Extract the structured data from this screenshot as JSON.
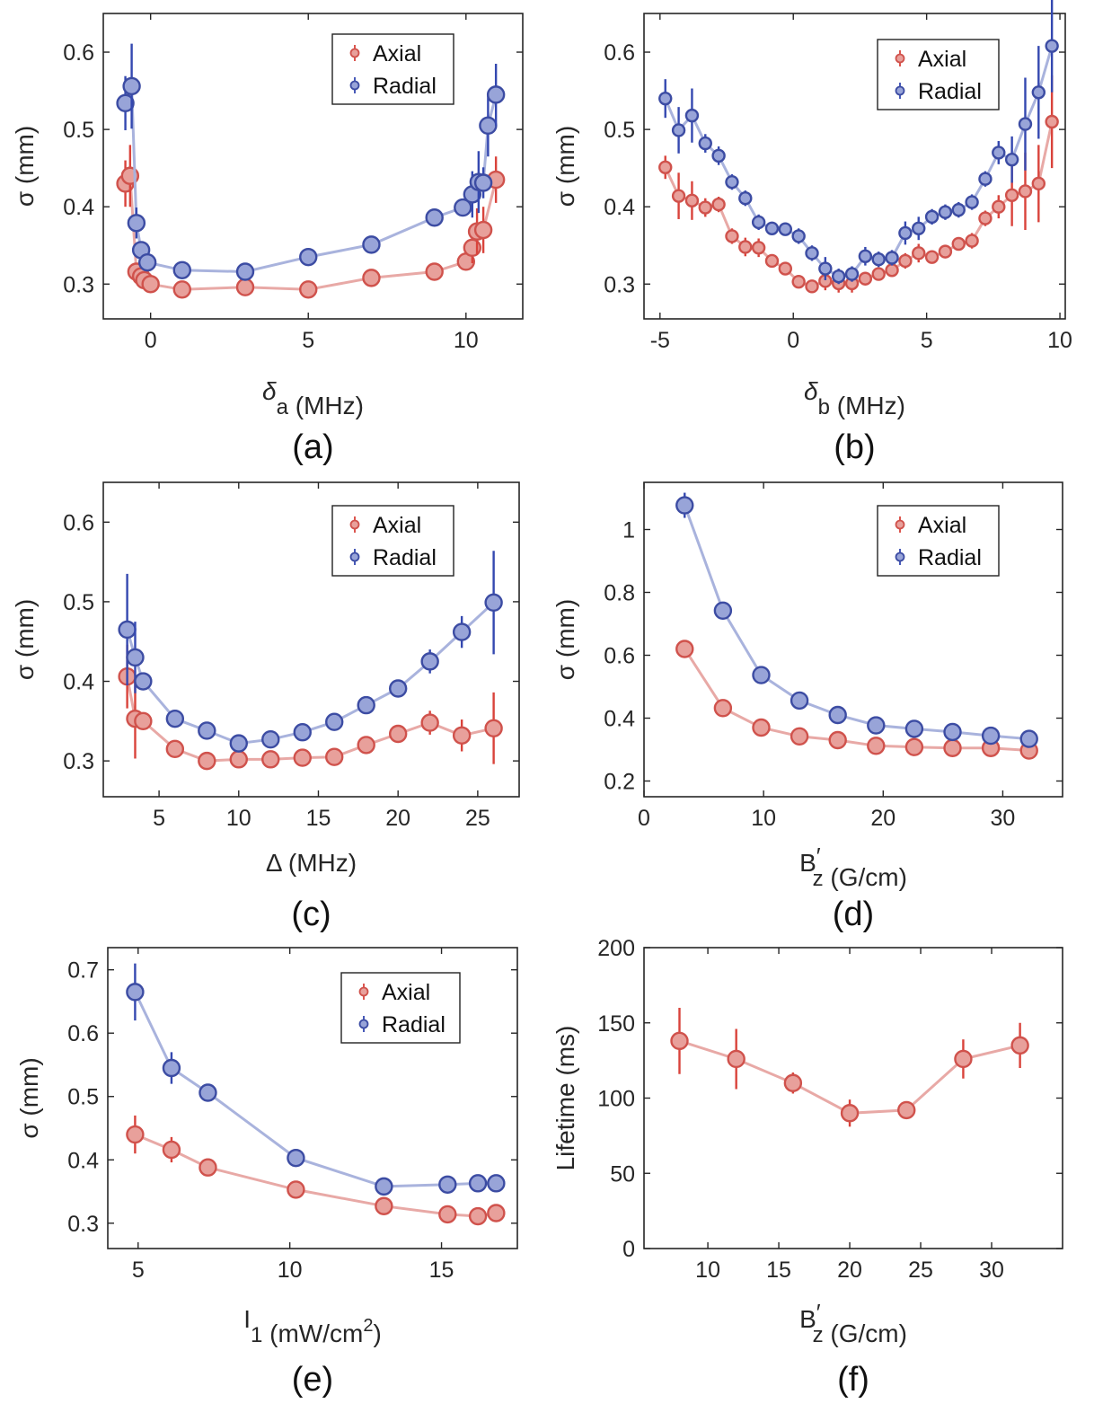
{
  "chart_data": [
    {
      "id": "a",
      "type": "line",
      "panel_label": "(a)",
      "xlabel_base": "δ",
      "xlabel_sub": "a",
      "xlabel_rest": " (MHz)",
      "ylabel": "σ (mm)",
      "xlim": [
        -1.5,
        11.8
      ],
      "ylim": [
        0.255,
        0.65
      ],
      "xticks": [
        0,
        5,
        10
      ],
      "xtick_labels": [
        "0",
        "5",
        "10"
      ],
      "yticks": [
        0.3,
        0.4,
        0.5,
        0.6
      ],
      "ytick_labels": [
        "0.3",
        "0.4",
        "0.5",
        "0.6"
      ],
      "legend": "top-right",
      "series": [
        {
          "name": "Axial",
          "x": [
            -0.8,
            -0.65,
            -0.45,
            -0.3,
            -0.2,
            0.0,
            1.0,
            3.0,
            5.0,
            7.0,
            9.0,
            10.0,
            10.2,
            10.35,
            10.55,
            10.95
          ],
          "y": [
            0.43,
            0.44,
            0.316,
            0.31,
            0.305,
            0.3,
            0.293,
            0.296,
            0.293,
            0.308,
            0.316,
            0.329,
            0.347,
            0.368,
            0.37,
            0.435
          ],
          "err": [
            0.03,
            0.04,
            0.01,
            0.01,
            0.01,
            0.01,
            0.005,
            0.005,
            0.005,
            0.005,
            0.005,
            0.01,
            0.02,
            0.03,
            0.03,
            0.03
          ]
        },
        {
          "name": "Radial",
          "x": [
            -0.8,
            -0.6,
            -0.45,
            -0.3,
            -0.1,
            1.0,
            3.0,
            5.0,
            7.0,
            9.0,
            9.9,
            10.2,
            10.4,
            10.55,
            10.7,
            10.95
          ],
          "y": [
            0.534,
            0.556,
            0.379,
            0.344,
            0.328,
            0.318,
            0.316,
            0.335,
            0.351,
            0.386,
            0.399,
            0.416,
            0.432,
            0.431,
            0.505,
            0.545
          ],
          "err": [
            0.035,
            0.055,
            0.02,
            0.01,
            0.008,
            0.005,
            0.005,
            0.005,
            0.005,
            0.005,
            0.01,
            0.03,
            0.04,
            0.02,
            0.04,
            0.04
          ]
        }
      ]
    },
    {
      "id": "b",
      "type": "line",
      "panel_label": "(b)",
      "xlabel_base": "δ",
      "xlabel_sub": "b",
      "xlabel_rest": " (MHz)",
      "ylabel": "σ (mm)",
      "xlim": [
        -5.6,
        10.2
      ],
      "ylim": [
        0.255,
        0.65
      ],
      "xticks": [
        -5,
        0,
        5,
        10
      ],
      "xtick_labels": [
        "-5",
        "0",
        "5",
        "10"
      ],
      "yticks": [
        0.3,
        0.4,
        0.5,
        0.6
      ],
      "ytick_labels": [
        "0.3",
        "0.4",
        "0.5",
        "0.6"
      ],
      "legend": "top-right",
      "series": [
        {
          "name": "Axial",
          "x": [
            -4.8,
            -4.3,
            -3.8,
            -3.3,
            -2.8,
            -2.3,
            -1.8,
            -1.3,
            -0.8,
            -0.3,
            0.2,
            0.7,
            1.2,
            1.7,
            2.2,
            2.7,
            3.2,
            3.7,
            4.2,
            4.7,
            5.2,
            5.7,
            6.2,
            6.7,
            7.2,
            7.7,
            8.2,
            8.7,
            9.2,
            9.7
          ],
          "y": [
            0.451,
            0.414,
            0.408,
            0.399,
            0.403,
            0.362,
            0.348,
            0.347,
            0.33,
            0.32,
            0.303,
            0.297,
            0.304,
            0.301,
            0.301,
            0.307,
            0.313,
            0.318,
            0.33,
            0.34,
            0.335,
            0.342,
            0.352,
            0.356,
            0.385,
            0.4,
            0.415,
            0.42,
            0.43,
            0.51
          ],
          "err": [
            0.015,
            0.03,
            0.025,
            0.012,
            0.01,
            0.01,
            0.012,
            0.012,
            0.008,
            0.007,
            0.005,
            0.005,
            0.012,
            0.012,
            0.012,
            0.008,
            0.008,
            0.008,
            0.01,
            0.012,
            0.008,
            0.008,
            0.008,
            0.01,
            0.01,
            0.015,
            0.04,
            0.05,
            0.05,
            0.06
          ]
        },
        {
          "name": "Radial",
          "x": [
            -4.8,
            -4.3,
            -3.8,
            -3.3,
            -2.8,
            -2.3,
            -1.8,
            -1.3,
            -0.8,
            -0.3,
            0.2,
            0.7,
            1.2,
            1.7,
            2.2,
            2.7,
            3.2,
            3.7,
            4.2,
            4.7,
            5.2,
            5.7,
            6.2,
            6.7,
            7.2,
            7.7,
            8.2,
            8.7,
            9.2,
            9.7
          ],
          "y": [
            0.54,
            0.499,
            0.518,
            0.482,
            0.466,
            0.432,
            0.411,
            0.38,
            0.372,
            0.371,
            0.362,
            0.34,
            0.32,
            0.31,
            0.313,
            0.336,
            0.332,
            0.334,
            0.366,
            0.372,
            0.387,
            0.393,
            0.396,
            0.406,
            0.436,
            0.47,
            0.461,
            0.507,
            0.548,
            0.608
          ],
          "err": [
            0.025,
            0.03,
            0.035,
            0.012,
            0.012,
            0.01,
            0.01,
            0.01,
            0.008,
            0.008,
            0.01,
            0.01,
            0.015,
            0.01,
            0.01,
            0.012,
            0.01,
            0.01,
            0.015,
            0.015,
            0.01,
            0.01,
            0.01,
            0.01,
            0.01,
            0.015,
            0.03,
            0.06,
            0.06,
            0.06
          ]
        }
      ]
    },
    {
      "id": "c",
      "type": "line",
      "panel_label": "(c)",
      "xlabel_base": "Δ",
      "xlabel_sub": "",
      "xlabel_rest": " (MHz)",
      "ylabel": "σ (mm)",
      "xlim": [
        1.5,
        27.6
      ],
      "ylim": [
        0.255,
        0.65
      ],
      "xticks": [
        5,
        10,
        15,
        20,
        25
      ],
      "xtick_labels": [
        "5",
        "10",
        "15",
        "20",
        "25"
      ],
      "yticks": [
        0.3,
        0.4,
        0.5,
        0.6
      ],
      "ytick_labels": [
        "0.3",
        "0.4",
        "0.5",
        "0.6"
      ],
      "legend": "top-right",
      "series": [
        {
          "name": "Axial",
          "x": [
            3.0,
            3.5,
            4.0,
            6.0,
            8.0,
            10.0,
            12.0,
            14.0,
            16.0,
            18.0,
            20.0,
            22.0,
            24.0,
            26.0
          ],
          "y": [
            0.406,
            0.353,
            0.35,
            0.315,
            0.3,
            0.302,
            0.302,
            0.304,
            0.305,
            0.32,
            0.334,
            0.348,
            0.332,
            0.341
          ],
          "err": [
            0.04,
            0.05,
            0.01,
            0.005,
            0.005,
            0.005,
            0.005,
            0.005,
            0.005,
            0.005,
            0.01,
            0.015,
            0.02,
            0.045
          ]
        },
        {
          "name": "Radial",
          "x": [
            3.0,
            3.5,
            4.0,
            6.0,
            8.0,
            10.0,
            12.0,
            14.0,
            16.0,
            18.0,
            20.0,
            22.0,
            24.0,
            26.0
          ],
          "y": [
            0.465,
            0.43,
            0.4,
            0.353,
            0.338,
            0.322,
            0.327,
            0.336,
            0.349,
            0.37,
            0.391,
            0.425,
            0.462,
            0.499
          ],
          "err": [
            0.07,
            0.045,
            0.01,
            0.005,
            0.005,
            0.005,
            0.005,
            0.005,
            0.005,
            0.005,
            0.008,
            0.015,
            0.02,
            0.065
          ]
        }
      ]
    },
    {
      "id": "d",
      "type": "line",
      "panel_label": "(d)",
      "xlabel_base": "B",
      "xlabel_sub": "z",
      "xlabel_rest": " (G/cm)",
      "xlabel_prime": true,
      "ylabel": "σ (mm)",
      "xlim": [
        0,
        35
      ],
      "ylim": [
        0.15,
        1.15
      ],
      "xticks": [
        0,
        10,
        20,
        30
      ],
      "xtick_labels": [
        "0",
        "10",
        "20",
        "30"
      ],
      "yticks": [
        0.2,
        0.4,
        0.6,
        0.8,
        1.0
      ],
      "ytick_labels": [
        "0.2",
        "0.4",
        "0.6",
        "0.8",
        "1"
      ],
      "legend": "top-right",
      "series": [
        {
          "name": "Axial",
          "x": [
            3.4,
            6.6,
            9.8,
            13.0,
            16.2,
            19.4,
            22.6,
            25.8,
            29.0,
            32.2
          ],
          "y": [
            0.62,
            0.432,
            0.37,
            0.342,
            0.33,
            0.312,
            0.308,
            0.305,
            0.305,
            0.297
          ],
          "err": [
            0.01,
            0.01,
            0.01,
            0.008,
            0.005,
            0.005,
            0.005,
            0.005,
            0.005,
            0.005
          ]
        },
        {
          "name": "Radial",
          "x": [
            3.4,
            6.6,
            9.8,
            13.0,
            16.2,
            19.4,
            22.6,
            25.8,
            29.0,
            32.2
          ],
          "y": [
            1.077,
            0.742,
            0.537,
            0.456,
            0.41,
            0.377,
            0.366,
            0.356,
            0.344,
            0.334
          ],
          "err": [
            0.04,
            0.01,
            0.01,
            0.008,
            0.005,
            0.005,
            0.005,
            0.005,
            0.005,
            0.005
          ]
        }
      ]
    },
    {
      "id": "e",
      "type": "line",
      "panel_label": "(e)",
      "xlabel_base": "I",
      "xlabel_sub": "1",
      "xlabel_rest": " (mW/cm",
      "xlabel_sup": "2",
      "xlabel_end": ")",
      "ylabel": "σ (mm)",
      "xlim": [
        4.0,
        17.5
      ],
      "ylim": [
        0.26,
        0.735
      ],
      "xticks": [
        5,
        10,
        15
      ],
      "xtick_labels": [
        "5",
        "10",
        "15"
      ],
      "yticks": [
        0.3,
        0.4,
        0.5,
        0.6,
        0.7
      ],
      "ytick_labels": [
        "0.3",
        "0.4",
        "0.5",
        "0.6",
        "0.7"
      ],
      "legend": "top-right",
      "series": [
        {
          "name": "Axial",
          "x": [
            4.9,
            6.1,
            7.3,
            10.2,
            13.1,
            15.2,
            16.2,
            16.8
          ],
          "y": [
            0.44,
            0.416,
            0.388,
            0.353,
            0.327,
            0.314,
            0.311,
            0.316
          ],
          "err": [
            0.03,
            0.02,
            0.008,
            0.008,
            0.008,
            0.008,
            0.008,
            0.008
          ]
        },
        {
          "name": "Radial",
          "x": [
            4.9,
            6.1,
            7.3,
            10.2,
            13.1,
            15.2,
            16.2,
            16.8
          ],
          "y": [
            0.665,
            0.545,
            0.506,
            0.403,
            0.358,
            0.361,
            0.363,
            0.363
          ],
          "err": [
            0.045,
            0.025,
            0.008,
            0.008,
            0.008,
            0.008,
            0.008,
            0.008
          ]
        }
      ]
    },
    {
      "id": "f",
      "type": "line",
      "panel_label": "(f)",
      "xlabel_base": "B",
      "xlabel_sub": "z",
      "xlabel_rest": " (G/cm)",
      "xlabel_prime": true,
      "ylabel": "Lifetime (ms)",
      "xlim": [
        5.5,
        35
      ],
      "ylim": [
        0,
        200
      ],
      "xticks": [
        10,
        15,
        20,
        25,
        30
      ],
      "xtick_labels": [
        "10",
        "15",
        "20",
        "25",
        "30"
      ],
      "yticks": [
        0,
        50,
        100,
        150,
        200
      ],
      "ytick_labels": [
        "0",
        "50",
        "100",
        "150",
        "200"
      ],
      "legend": "none",
      "series": [
        {
          "name": "Axial",
          "x": [
            8,
            12,
            16,
            20,
            24,
            28,
            32
          ],
          "y": [
            138,
            126,
            110,
            90,
            92,
            126,
            135
          ],
          "err": [
            22,
            20,
            7,
            9,
            3,
            13,
            15
          ]
        }
      ]
    }
  ],
  "legend_labels": {
    "axial": "Axial",
    "radial": "Radial"
  },
  "colors": {
    "axial_line": "#e8a9a6",
    "axial_marker_fill": "#e8a09b",
    "axial_marker_edge": "#d0524c",
    "axial_error": "#d9433b",
    "radial_line": "#a9b3dd",
    "radial_marker_fill": "#98a4d8",
    "radial_marker_edge": "#3c4ca3",
    "radial_error": "#3448b0",
    "axis": "#262626"
  }
}
